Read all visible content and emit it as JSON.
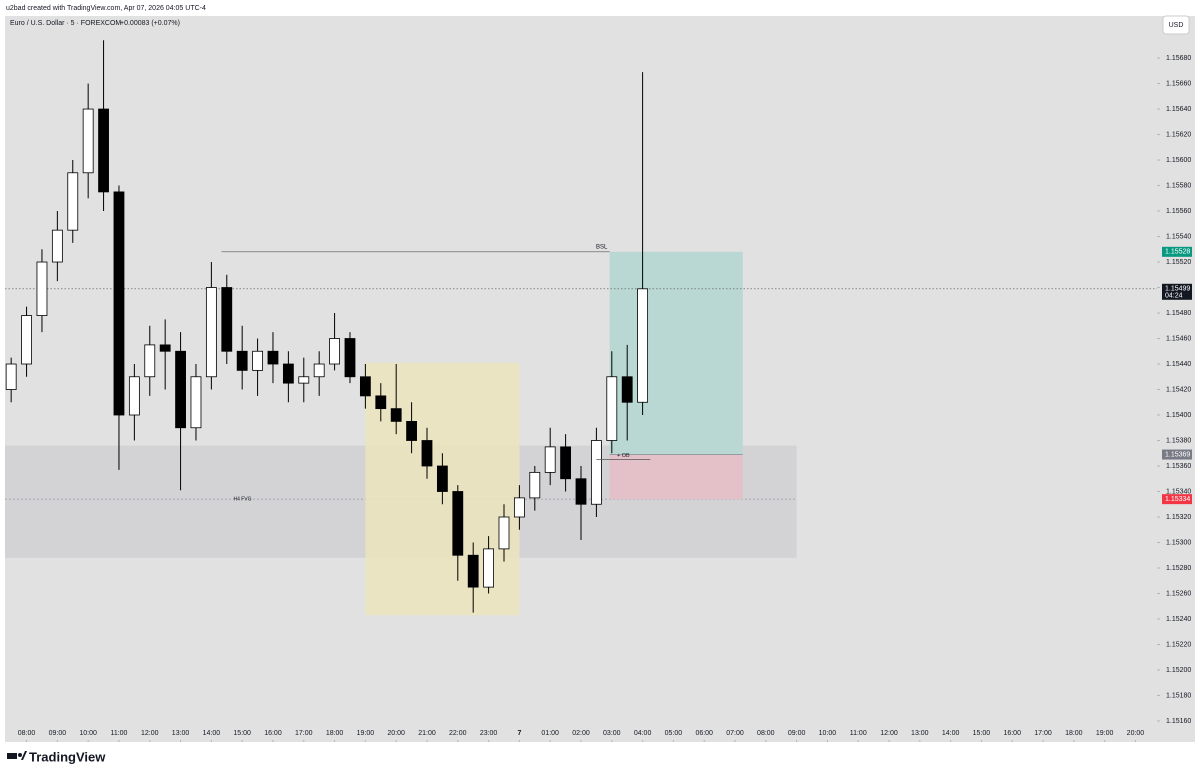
{
  "chart_data": {
    "type": "candlestick",
    "attribution": "u2bad created with TradingView.com, Apr 07, 2026 04:05 UTC-4",
    "title": "Euro / U.S. Dollar · 5 · FOREXCOM",
    "change": "+0.00083 (+0.07%)",
    "currency": "USD",
    "brand": "TradingView",
    "x": [
      -0.5,
      0,
      0.5,
      1,
      1.5,
      2,
      2.5,
      3,
      3.5,
      4,
      4.5,
      5,
      5.5,
      6,
      6.5,
      7,
      7.5,
      8,
      8.5,
      9,
      9.5,
      10,
      10.5,
      11,
      11.5,
      12,
      12.5,
      13,
      13.5,
      14,
      14.5,
      15,
      15.5,
      16,
      16.5,
      17,
      17.5,
      18,
      18.5,
      19,
      19.5,
      20
    ],
    "open": [
      1.1542,
      1.1544,
      1.15478,
      1.1552,
      1.15545,
      1.1559,
      1.1564,
      1.15575,
      1.154,
      1.1543,
      1.15455,
      1.1545,
      1.1539,
      1.1543,
      1.155,
      1.1545,
      1.15435,
      1.1545,
      1.1544,
      1.15425,
      1.1543,
      1.1544,
      1.1546,
      1.1543,
      1.15415,
      1.15405,
      1.15395,
      1.1538,
      1.1536,
      1.1534,
      1.1529,
      1.15265,
      1.15295,
      1.1532,
      1.15335,
      1.15355,
      1.15375,
      1.1535,
      1.1533,
      1.1538,
      1.1543,
      1.1541
    ],
    "high": [
      1.15445,
      1.15485,
      1.1553,
      1.1556,
      1.156,
      1.1566,
      1.15694,
      1.1558,
      1.1544,
      1.1547,
      1.15475,
      1.15465,
      1.1544,
      1.1552,
      1.1551,
      1.1547,
      1.1546,
      1.15465,
      1.1545,
      1.15445,
      1.1545,
      1.1548,
      1.15465,
      1.1544,
      1.15425,
      1.1544,
      1.1541,
      1.1539,
      1.1537,
      1.15345,
      1.153,
      1.15305,
      1.1533,
      1.15345,
      1.1536,
      1.1539,
      1.15385,
      1.1536,
      1.1539,
      1.1545,
      1.15455,
      1.15669
    ],
    "low": [
      1.1541,
      1.1543,
      1.15465,
      1.15505,
      1.15535,
      1.1557,
      1.1556,
      1.15357,
      1.1538,
      1.15415,
      1.1542,
      1.15341,
      1.1538,
      1.1542,
      1.1544,
      1.1542,
      1.15415,
      1.15425,
      1.1541,
      1.1541,
      1.15415,
      1.15435,
      1.15425,
      1.15405,
      1.15395,
      1.15385,
      1.1537,
      1.1535,
      1.1533,
      1.1527,
      1.15245,
      1.1526,
      1.15285,
      1.1531,
      1.15325,
      1.15345,
      1.1534,
      1.15302,
      1.1532,
      1.1537,
      1.1538,
      1.154
    ],
    "close": [
      1.1544,
      1.15478,
      1.1552,
      1.15545,
      1.1559,
      1.1564,
      1.15575,
      1.154,
      1.1543,
      1.15455,
      1.1545,
      1.1539,
      1.1543,
      1.155,
      1.1545,
      1.15435,
      1.1545,
      1.1544,
      1.15425,
      1.1543,
      1.1544,
      1.1546,
      1.1543,
      1.15415,
      1.15405,
      1.15395,
      1.1538,
      1.1536,
      1.1534,
      1.1529,
      1.15265,
      1.15295,
      1.1532,
      1.15335,
      1.15355,
      1.15375,
      1.1535,
      1.1533,
      1.1538,
      1.1543,
      1.1541,
      1.15499
    ],
    "xlim": [
      -0.7,
      36.7
    ],
    "xticks": [
      {
        "value": 0,
        "label": "08:00"
      },
      {
        "value": 1,
        "label": "09:00"
      },
      {
        "value": 2,
        "label": "10:00"
      },
      {
        "value": 3,
        "label": "11:00"
      },
      {
        "value": 4,
        "label": "12:00"
      },
      {
        "value": 5,
        "label": "13:00"
      },
      {
        "value": 6,
        "label": "14:00"
      },
      {
        "value": 7,
        "label": "15:00"
      },
      {
        "value": 8,
        "label": "16:00"
      },
      {
        "value": 9,
        "label": "17:00"
      },
      {
        "value": 10,
        "label": "18:00"
      },
      {
        "value": 11,
        "label": "19:00"
      },
      {
        "value": 12,
        "label": "20:00"
      },
      {
        "value": 13,
        "label": "21:00"
      },
      {
        "value": 14,
        "label": "22:00"
      },
      {
        "value": 15,
        "label": "23:00"
      },
      {
        "value": 16,
        "label": "7"
      },
      {
        "value": 17,
        "label": "01:00"
      },
      {
        "value": 18,
        "label": "02:00"
      },
      {
        "value": 19,
        "label": "03:00"
      },
      {
        "value": 20,
        "label": "04:00"
      },
      {
        "value": 21,
        "label": "05:00"
      },
      {
        "value": 22,
        "label": "06:00"
      },
      {
        "value": 23,
        "label": "07:00"
      },
      {
        "value": 24,
        "label": "08:00"
      },
      {
        "value": 25,
        "label": "09:00"
      },
      {
        "value": 26,
        "label": "10:00"
      },
      {
        "value": 27,
        "label": "11:00"
      },
      {
        "value": 28,
        "label": "12:00"
      },
      {
        "value": 29,
        "label": "13:00"
      },
      {
        "value": 30,
        "label": "14:00"
      },
      {
        "value": 31,
        "label": "15:00"
      },
      {
        "value": 32,
        "label": "16:00"
      },
      {
        "value": 33,
        "label": "17:00"
      },
      {
        "value": 34,
        "label": "18:00"
      },
      {
        "value": 35,
        "label": "19:00"
      },
      {
        "value": 36,
        "label": "20:00"
      }
    ],
    "ylim": [
      1.15149,
      1.15702
    ],
    "yticks": [
      {
        "value": 1.1516,
        "label": "1.15160"
      },
      {
        "value": 1.1518,
        "label": "1.15180"
      },
      {
        "value": 1.152,
        "label": "1.15200"
      },
      {
        "value": 1.1522,
        "label": "1.15220"
      },
      {
        "value": 1.1524,
        "label": "1.15240"
      },
      {
        "value": 1.1526,
        "label": "1.15260"
      },
      {
        "value": 1.1528,
        "label": "1.15280"
      },
      {
        "value": 1.153,
        "label": "1.15300"
      },
      {
        "value": 1.1532,
        "label": "1.15320"
      },
      {
        "value": 1.1534,
        "label": "1.15340"
      },
      {
        "value": 1.1536,
        "label": "1.15360"
      },
      {
        "value": 1.1538,
        "label": "1.15380"
      },
      {
        "value": 1.154,
        "label": "1.15400"
      },
      {
        "value": 1.1542,
        "label": "1.15420"
      },
      {
        "value": 1.1544,
        "label": "1.15440"
      },
      {
        "value": 1.1546,
        "label": "1.15460"
      },
      {
        "value": 1.1548,
        "label": "1.15480"
      },
      {
        "value": 1.155,
        "label": "1.15500"
      },
      {
        "value": 1.1552,
        "label": "1.15520"
      },
      {
        "value": 1.1554,
        "label": "1.15540"
      },
      {
        "value": 1.1556,
        "label": "1.15560"
      },
      {
        "value": 1.1558,
        "label": "1.15580"
      },
      {
        "value": 1.156,
        "label": "1.15600"
      },
      {
        "value": 1.1562,
        "label": "1.15620"
      },
      {
        "value": 1.1564,
        "label": "1.15640"
      },
      {
        "value": 1.1566,
        "label": "1.15660"
      },
      {
        "value": 1.1568,
        "label": "1.15680"
      }
    ],
    "fvg": {
      "label": "H4 FVG",
      "x": [
        -0.7,
        25
      ],
      "y": [
        1.15288,
        1.15376
      ],
      "mid": 1.15334,
      "color": "#d3d3d6"
    },
    "session_box": {
      "x": [
        11,
        16
      ],
      "y": [
        1.15243,
        1.15441
      ],
      "color": "#ebe4bd"
    },
    "bsl": {
      "label": "BSL",
      "x": [
        6.33,
        18.93
      ],
      "y": 1.15528
    },
    "position": {
      "x": [
        18.93,
        23.25
      ],
      "entry": 1.15369,
      "target": 1.15528,
      "stop": 1.15334,
      "profit_color": "#b9d8d3",
      "loss_color": "#e4c1c8"
    },
    "ob": {
      "label": "+ OB",
      "x": [
        18.5,
        20.25
      ],
      "y": 1.15369
    },
    "price_labels": [
      {
        "value": 1.15528,
        "color": "#089981"
      },
      {
        "value": 1.15369,
        "color": "#787b86"
      },
      {
        "value": 1.15334,
        "color": "#f23645"
      }
    ],
    "last_price": 1.15499,
    "countdown": "04:24"
  }
}
